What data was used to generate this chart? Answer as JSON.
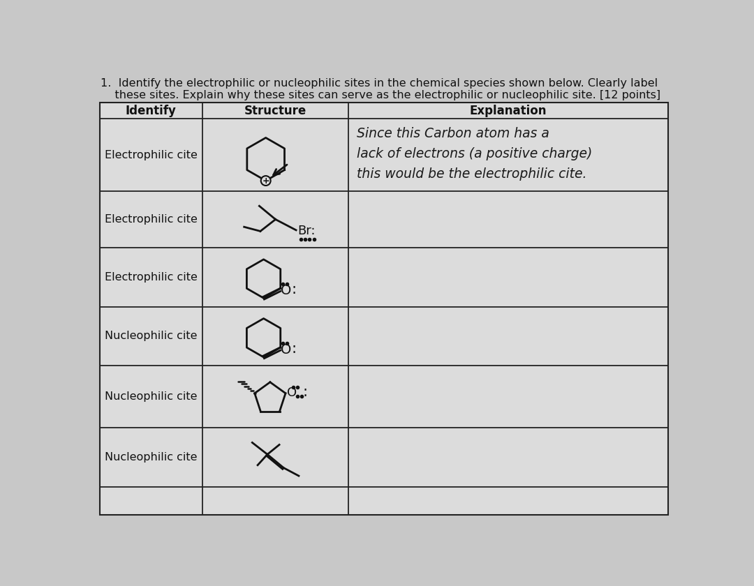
{
  "title_line1": "1.  Identify the electrophilic or nucleophilic sites in the chemical species shown below. Clearly label",
  "title_line2": "    these sites. Explain why these sites can serve as the electrophilic or nucleophilic site. [12 points]",
  "col_headers": [
    "Identify",
    "Structure",
    "Explanation"
  ],
  "rows": [
    {
      "identify": "Electrophilic cite",
      "explanation": "Since this Carbon atom has a\nlack of electrons (a positive charge)\nthis would be the electrophilic cite."
    },
    {
      "identify": "Electrophilic cite",
      "explanation": ""
    },
    {
      "identify": "Electrophilic cite",
      "explanation": ""
    },
    {
      "identify": "Nucleophilic cite",
      "explanation": ""
    },
    {
      "identify": "Nucleophilic cite",
      "explanation": ""
    },
    {
      "identify": "Nucleophilic cite",
      "explanation": ""
    }
  ],
  "bg_color": "#c8c8c8",
  "table_bg": "#e0e0e0",
  "text_color": "#111111",
  "header_color": "#111111"
}
